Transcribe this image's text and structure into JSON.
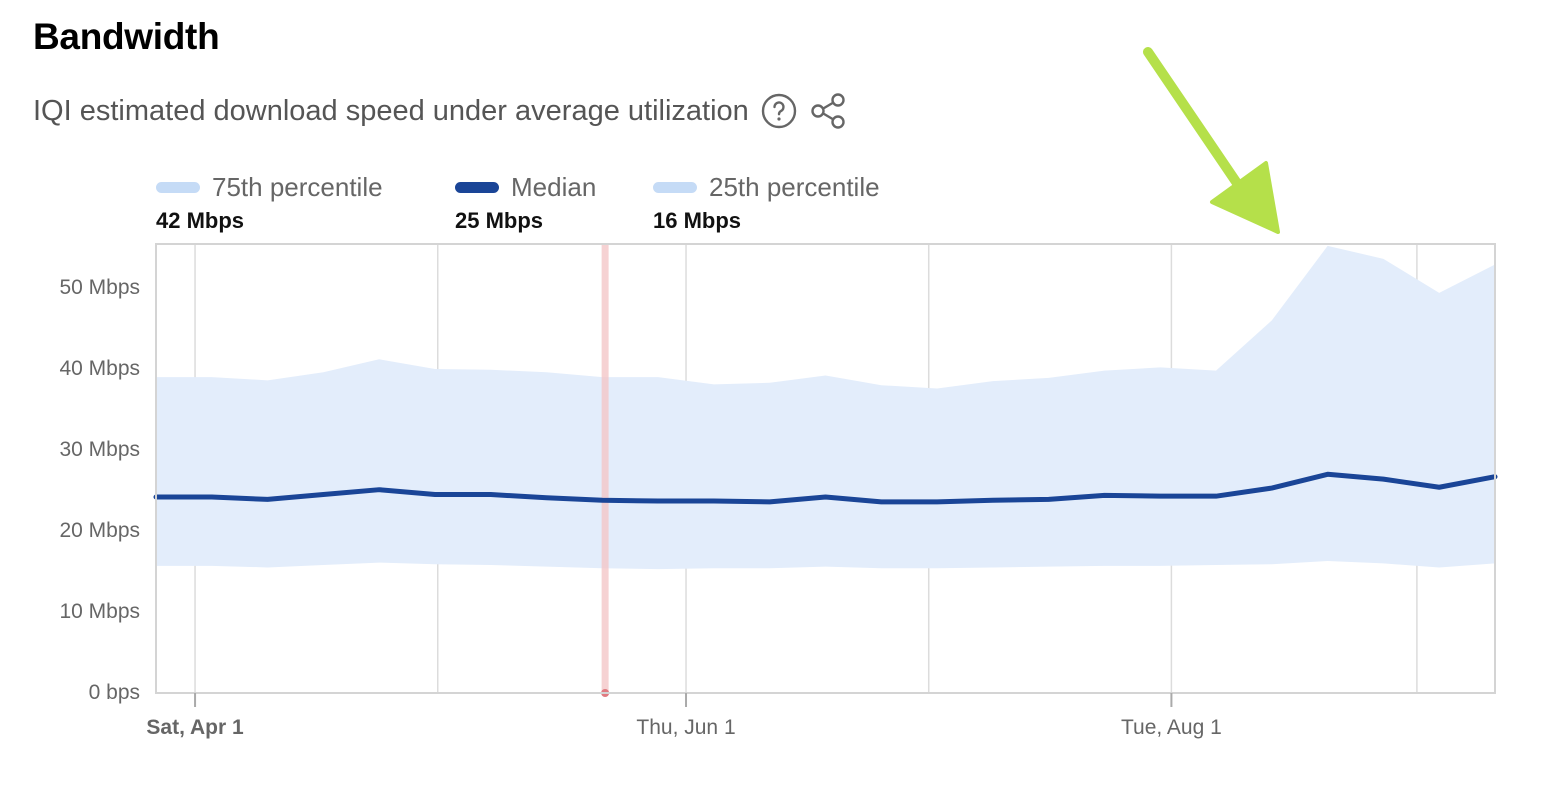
{
  "header": {
    "title": "Bandwidth",
    "subtitle": "IQI estimated download speed under average utilization",
    "help_icon": "question-circle-icon",
    "share_icon": "share-icon"
  },
  "legend": [
    {
      "label": "75th percentile",
      "value": "42 Mbps",
      "color": "#c5dbf6"
    },
    {
      "label": "Median",
      "value": "25 Mbps",
      "color": "#1a4597"
    },
    {
      "label": "25th percentile",
      "value": "16 Mbps",
      "color": "#c5dbf6"
    }
  ],
  "annotation": {
    "type": "arrow",
    "color": "#b5e04a",
    "points_to": "75th percentile spike in August"
  },
  "chart_data": {
    "type": "area",
    "title": "Bandwidth",
    "subtitle": "IQI estimated download speed under average utilization",
    "xlabel": "",
    "ylabel": "",
    "y_ticks": [
      "0 bps",
      "10 Mbps",
      "20 Mbps",
      "30 Mbps",
      "40 Mbps",
      "50 Mbps"
    ],
    "y_tick_values": [
      0,
      10,
      20,
      30,
      40,
      50
    ],
    "ylim": [
      0,
      55.5
    ],
    "x_ticks": [
      {
        "label": "Sat, Apr 1",
        "bold": true,
        "index": 0.7
      },
      {
        "label": "Thu, Jun 1",
        "bold": false,
        "index": 9.5
      },
      {
        "label": "Tue, Aug 1",
        "bold": false,
        "index": 18.2
      }
    ],
    "grid": {
      "vertical": true,
      "horizontal": false
    },
    "legend_position": "top",
    "highlight_marker": {
      "index": 8.05,
      "color": "#f4c7c9"
    },
    "series": [
      {
        "name": "75th percentile",
        "summary": "42 Mbps",
        "values": [
          39.0,
          39.0,
          38.6,
          39.6,
          41.2,
          40.0,
          39.9,
          39.6,
          39.0,
          39.0,
          38.1,
          38.3,
          39.2,
          38.0,
          37.6,
          38.5,
          38.9,
          39.8,
          40.2,
          39.8,
          46.0,
          55.2,
          53.6,
          49.4,
          52.9
        ]
      },
      {
        "name": "Median",
        "summary": "25 Mbps",
        "values": [
          24.2,
          24.2,
          23.9,
          24.5,
          25.1,
          24.5,
          24.5,
          24.1,
          23.8,
          23.7,
          23.7,
          23.6,
          24.2,
          23.6,
          23.6,
          23.8,
          23.9,
          24.4,
          24.3,
          24.3,
          25.3,
          27.0,
          26.4,
          25.4,
          26.7
        ]
      },
      {
        "name": "25th percentile",
        "summary": "16 Mbps",
        "values": [
          15.7,
          15.7,
          15.5,
          15.8,
          16.1,
          15.9,
          15.8,
          15.6,
          15.4,
          15.3,
          15.4,
          15.4,
          15.6,
          15.4,
          15.4,
          15.5,
          15.6,
          15.7,
          15.7,
          15.8,
          15.9,
          16.3,
          16.0,
          15.5,
          16.0
        ]
      }
    ]
  }
}
